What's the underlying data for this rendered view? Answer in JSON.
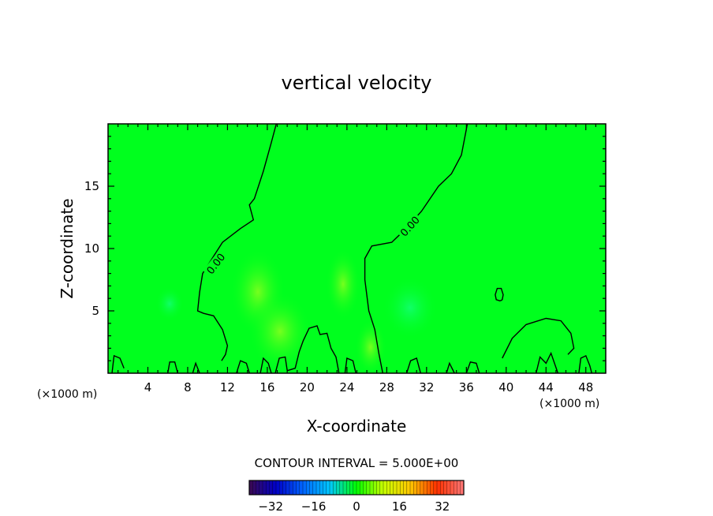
{
  "chart_data": {
    "type": "contour",
    "title": "vertical velocity",
    "xlabel": "X-coordinate",
    "ylabel": "Z-coordinate",
    "x_units_left": "(×1000 m)",
    "x_units_right": "(×1000 m)",
    "xlim": [
      0,
      50
    ],
    "ylim": [
      0,
      20
    ],
    "x_ticks": [
      4,
      8,
      12,
      16,
      20,
      24,
      28,
      32,
      36,
      40,
      44,
      48
    ],
    "y_ticks": [
      5,
      10,
      15
    ],
    "contour_label": "0.00",
    "contour_interval_text": "CONTOUR INTERVAL = 5.000E+00",
    "colorbar": {
      "min": -40,
      "max": 40,
      "ticks": [
        -32,
        -16,
        0,
        16,
        32
      ],
      "colors": [
        "#3c0a50",
        "#0000c8",
        "#0064ff",
        "#00c8ff",
        "#00ff00",
        "#c8ff00",
        "#ffc800",
        "#ff3200",
        "#ff7878"
      ]
    },
    "background_color": "#00ff1e",
    "contours": [
      [
        [
          16.9,
          20
        ],
        [
          16.4,
          18.5
        ],
        [
          15.6,
          16.2
        ],
        [
          14.7,
          14
        ],
        [
          14.2,
          13.5
        ],
        [
          14.6,
          12.3
        ],
        [
          13.3,
          11.6
        ],
        [
          11.5,
          10.5
        ],
        [
          10.3,
          9
        ],
        [
          9.5,
          8
        ],
        [
          9.2,
          6.5
        ],
        [
          9.0,
          5
        ],
        [
          9.6,
          4.8
        ],
        [
          10.6,
          4.6
        ],
        [
          11.5,
          3.5
        ],
        [
          12.0,
          2.2
        ],
        [
          11.8,
          1.5
        ],
        [
          11.4,
          1
        ]
      ],
      [
        [
          36.1,
          20
        ],
        [
          35.5,
          17.5
        ],
        [
          34.5,
          16
        ],
        [
          33.2,
          15
        ],
        [
          31.5,
          13
        ],
        [
          29.8,
          11.5
        ],
        [
          28.5,
          10.5
        ],
        [
          26.5,
          10.2
        ],
        [
          25.8,
          9.2
        ],
        [
          25.8,
          7.5
        ],
        [
          26.2,
          5
        ],
        [
          26.8,
          3.5
        ],
        [
          27.2,
          1.6
        ],
        [
          27.6,
          0
        ]
      ],
      [
        [
          39.4,
          5.8
        ],
        [
          39.0,
          5.9
        ],
        [
          38.9,
          6.3
        ],
        [
          39.1,
          6.8
        ],
        [
          39.5,
          6.8
        ],
        [
          39.7,
          6.3
        ],
        [
          39.6,
          5.9
        ],
        [
          39.4,
          5.8
        ]
      ],
      [
        [
          39.6,
          1.2
        ],
        [
          40.6,
          2.8
        ],
        [
          42.0,
          3.9
        ],
        [
          44.0,
          4.4
        ],
        [
          45.5,
          4.2
        ],
        [
          46.5,
          3.2
        ],
        [
          46.8,
          2.0
        ],
        [
          46.2,
          1.5
        ]
      ],
      [
        [
          16.8,
          0
        ],
        [
          17.2,
          1.2
        ],
        [
          17.8,
          1.3
        ],
        [
          18.0,
          0.2
        ],
        [
          18.8,
          0.4
        ],
        [
          19.2,
          1.7
        ],
        [
          19.6,
          2.6
        ],
        [
          20.2,
          3.6
        ],
        [
          21.0,
          3.8
        ],
        [
          21.3,
          3.1
        ],
        [
          22.0,
          3.2
        ],
        [
          22.4,
          2.0
        ],
        [
          22.9,
          1.3
        ],
        [
          23.2,
          0
        ]
      ],
      [
        [
          0.4,
          0
        ],
        [
          0.6,
          1.4
        ],
        [
          1.2,
          1.2
        ],
        [
          1.6,
          0.4
        ]
      ],
      [
        [
          6.0,
          0
        ],
        [
          6.2,
          0.9
        ],
        [
          6.7,
          0.9
        ],
        [
          7.0,
          0
        ]
      ],
      [
        [
          8.5,
          0
        ],
        [
          8.8,
          0.8
        ],
        [
          9.2,
          0
        ]
      ],
      [
        [
          12.9,
          0
        ],
        [
          13.3,
          1.0
        ],
        [
          13.9,
          0.8
        ],
        [
          14.2,
          0
        ]
      ],
      [
        [
          15.3,
          0
        ],
        [
          15.6,
          1.2
        ],
        [
          16.1,
          0.8
        ],
        [
          16.4,
          0
        ]
      ],
      [
        [
          23.8,
          0
        ],
        [
          24.0,
          1.2
        ],
        [
          24.6,
          1.0
        ],
        [
          24.9,
          0
        ]
      ],
      [
        [
          30.0,
          0
        ],
        [
          30.4,
          1.0
        ],
        [
          31.0,
          1.2
        ],
        [
          31.4,
          0
        ]
      ],
      [
        [
          34.0,
          0
        ],
        [
          34.3,
          0.8
        ],
        [
          34.8,
          0
        ]
      ],
      [
        [
          36.0,
          0
        ],
        [
          36.4,
          0.9
        ],
        [
          37.0,
          0.8
        ],
        [
          37.3,
          0
        ]
      ],
      [
        [
          43.0,
          0
        ],
        [
          43.4,
          1.3
        ],
        [
          44.0,
          0.8
        ],
        [
          44.5,
          1.6
        ],
        [
          45.2,
          0
        ]
      ],
      [
        [
          47.3,
          0
        ],
        [
          47.5,
          1.2
        ],
        [
          48.0,
          1.4
        ],
        [
          48.4,
          0.6
        ],
        [
          48.6,
          0
        ]
      ]
    ]
  }
}
